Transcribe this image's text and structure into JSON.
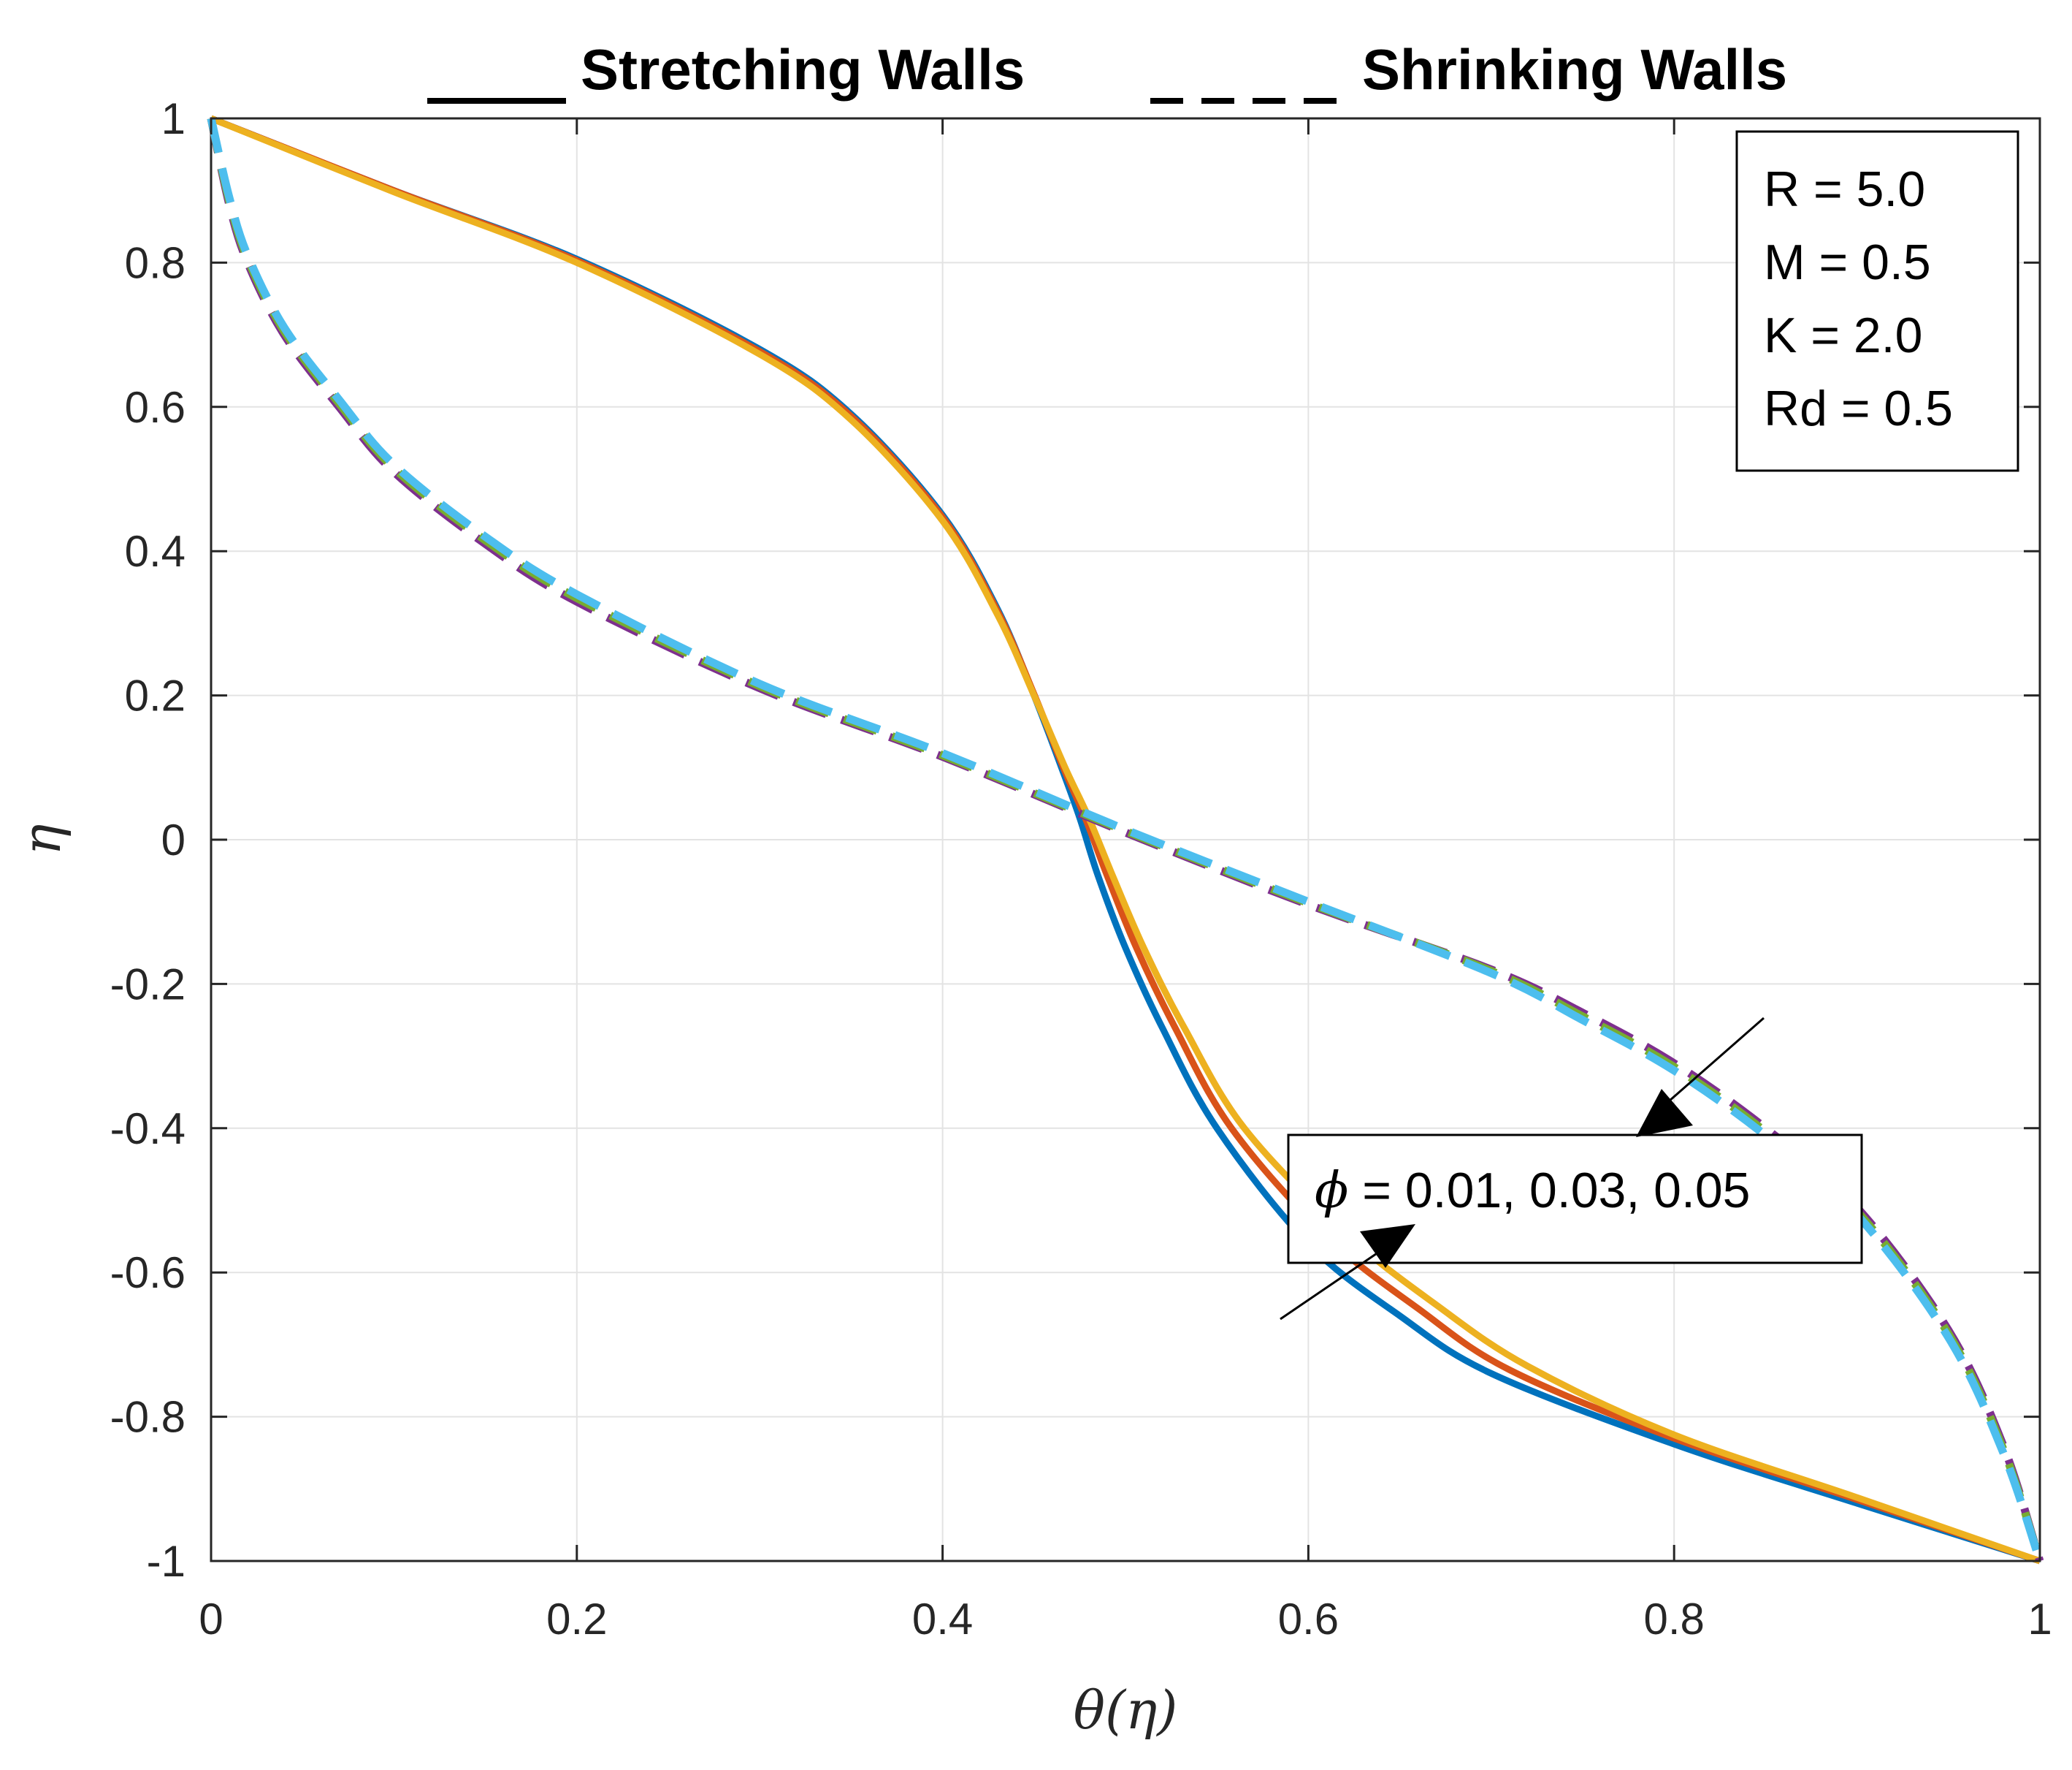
{
  "chart_data": {
    "type": "line",
    "title_left": "Stretching Walls",
    "title_right": "Shrinking Walls",
    "xlabel": "θ(η)",
    "ylabel": "η",
    "xlim": [
      0,
      1
    ],
    "ylim": [
      -1,
      1
    ],
    "xticks": [
      "0",
      "0.2",
      "0.4",
      "0.6",
      "0.8",
      "1"
    ],
    "yticks": [
      "1",
      "0.8",
      "0.6",
      "0.4",
      "0.2",
      "0",
      "-0.2",
      "-0.4",
      "-0.6",
      "-0.8",
      "-1"
    ],
    "grid": true,
    "legend": {
      "placement": "top-right",
      "lines": [
        "R = 5.0",
        "M = 0.5",
        "K = 2.0",
        "Rd = 0.5"
      ]
    },
    "annotation": {
      "symbol": "ϕ",
      "text": " = 0.01, 0.03, 0.05"
    },
    "series": [
      {
        "style": "solid",
        "color": "#0072BD",
        "points": [
          [
            0,
            1
          ],
          [
            0.1,
            0.9
          ],
          [
            0.2,
            0.805
          ],
          [
            0.3,
            0.68
          ],
          [
            0.35,
            0.59
          ],
          [
            0.4,
            0.45
          ],
          [
            0.43,
            0.32
          ],
          [
            0.45,
            0.2
          ],
          [
            0.465,
            0.1
          ],
          [
            0.475,
            0.03
          ],
          [
            0.485,
            -0.05
          ],
          [
            0.5,
            -0.15
          ],
          [
            0.52,
            -0.26
          ],
          [
            0.55,
            -0.4
          ],
          [
            0.6,
            -0.56
          ],
          [
            0.65,
            -0.66
          ],
          [
            0.7,
            -0.74
          ],
          [
            0.8,
            -0.838
          ],
          [
            0.9,
            -0.92
          ],
          [
            1,
            -1
          ]
        ]
      },
      {
        "style": "solid",
        "color": "#D95319",
        "points": [
          [
            0,
            1
          ],
          [
            0.1,
            0.9
          ],
          [
            0.2,
            0.803
          ],
          [
            0.3,
            0.677
          ],
          [
            0.35,
            0.587
          ],
          [
            0.4,
            0.447
          ],
          [
            0.43,
            0.317
          ],
          [
            0.45,
            0.202
          ],
          [
            0.466,
            0.1
          ],
          [
            0.478,
            0.03
          ],
          [
            0.49,
            -0.05
          ],
          [
            0.506,
            -0.15
          ],
          [
            0.527,
            -0.26
          ],
          [
            0.558,
            -0.4
          ],
          [
            0.61,
            -0.55
          ],
          [
            0.66,
            -0.65
          ],
          [
            0.71,
            -0.735
          ],
          [
            0.8,
            -0.83
          ],
          [
            0.9,
            -0.915
          ],
          [
            1,
            -1
          ]
        ]
      },
      {
        "style": "solid",
        "color": "#EDB120",
        "points": [
          [
            0,
            1
          ],
          [
            0.1,
            0.898
          ],
          [
            0.2,
            0.8
          ],
          [
            0.3,
            0.673
          ],
          [
            0.35,
            0.582
          ],
          [
            0.4,
            0.442
          ],
          [
            0.43,
            0.312
          ],
          [
            0.45,
            0.2
          ],
          [
            0.467,
            0.1
          ],
          [
            0.48,
            0.03
          ],
          [
            0.493,
            -0.05
          ],
          [
            0.51,
            -0.15
          ],
          [
            0.532,
            -0.26
          ],
          [
            0.565,
            -0.4
          ],
          [
            0.62,
            -0.545
          ],
          [
            0.67,
            -0.645
          ],
          [
            0.72,
            -0.73
          ],
          [
            0.8,
            -0.825
          ],
          [
            0.9,
            -0.912
          ],
          [
            1,
            -1
          ]
        ]
      },
      {
        "style": "dashed",
        "color": "#7E2F8E",
        "points": [
          [
            0,
            1
          ],
          [
            0.01,
            0.88
          ],
          [
            0.02,
            0.8
          ],
          [
            0.04,
            0.7
          ],
          [
            0.07,
            0.6
          ],
          [
            0.1,
            0.51
          ],
          [
            0.15,
            0.41
          ],
          [
            0.2,
            0.33
          ],
          [
            0.3,
            0.21
          ],
          [
            0.4,
            0.115
          ],
          [
            0.5,
            0.01
          ],
          [
            0.6,
            -0.09
          ],
          [
            0.7,
            -0.18
          ],
          [
            0.75,
            -0.24
          ],
          [
            0.8,
            -0.31
          ],
          [
            0.85,
            -0.4
          ],
          [
            0.9,
            -0.51
          ],
          [
            0.95,
            -0.68
          ],
          [
            0.98,
            -0.84
          ],
          [
            1,
            -1
          ]
        ]
      },
      {
        "style": "dashed",
        "color": "#77AC30",
        "points": [
          [
            0,
            1
          ],
          [
            0.01,
            0.885
          ],
          [
            0.02,
            0.805
          ],
          [
            0.04,
            0.705
          ],
          [
            0.07,
            0.605
          ],
          [
            0.1,
            0.515
          ],
          [
            0.15,
            0.415
          ],
          [
            0.2,
            0.335
          ],
          [
            0.3,
            0.213
          ],
          [
            0.4,
            0.117
          ],
          [
            0.5,
            0.012
          ],
          [
            0.6,
            -0.088
          ],
          [
            0.7,
            -0.182
          ],
          [
            0.75,
            -0.245
          ],
          [
            0.8,
            -0.315
          ],
          [
            0.85,
            -0.405
          ],
          [
            0.9,
            -0.515
          ],
          [
            0.95,
            -0.685
          ],
          [
            0.98,
            -0.845
          ],
          [
            1,
            -1
          ]
        ]
      },
      {
        "style": "dashed",
        "color": "#4DBEEE",
        "points": [
          [
            0,
            1
          ],
          [
            0.01,
            0.89
          ],
          [
            0.02,
            0.81
          ],
          [
            0.04,
            0.71
          ],
          [
            0.07,
            0.61
          ],
          [
            0.1,
            0.52
          ],
          [
            0.15,
            0.42
          ],
          [
            0.2,
            0.34
          ],
          [
            0.3,
            0.216
          ],
          [
            0.4,
            0.12
          ],
          [
            0.5,
            0.014
          ],
          [
            0.6,
            -0.086
          ],
          [
            0.7,
            -0.185
          ],
          [
            0.75,
            -0.25
          ],
          [
            0.8,
            -0.32
          ],
          [
            0.85,
            -0.41
          ],
          [
            0.9,
            -0.52
          ],
          [
            0.95,
            -0.69
          ],
          [
            0.98,
            -0.85
          ],
          [
            1,
            -1
          ]
        ]
      }
    ]
  }
}
